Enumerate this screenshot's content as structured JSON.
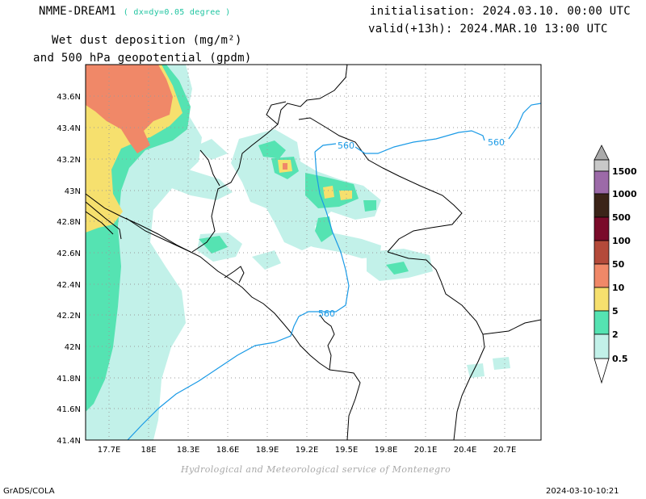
{
  "header": {
    "model": "NMME-DREAM1",
    "resolution": "( dx=dy=0.05 degree )",
    "title_line1": "Wet dust deposition (mg/m²)",
    "title_line2": "and 500 hPa geopotential (gpdm)",
    "init": "initialisation: 2024.03.10. 00:00 UTC",
    "valid": "valid(+13h): 2024.MAR.10 13:00 UTC"
  },
  "footer": {
    "credit": "Hydrological and Meteorological service of Montenegro",
    "left": "GrADS/COLA",
    "right": "2024-03-10-10:21"
  },
  "map": {
    "lat_labels": [
      "43.6N",
      "43.4N",
      "43.2N",
      "43N",
      "42.8N",
      "42.6N",
      "42.4N",
      "42.2N",
      "42N",
      "41.8N",
      "41.6N",
      "41.4N"
    ],
    "lon_labels": [
      "17.7E",
      "18E",
      "18.3E",
      "18.6E",
      "18.9E",
      "19.2E",
      "19.5E",
      "19.8E",
      "20.1E",
      "20.4E",
      "20.7E"
    ],
    "contour_labels": [
      "560",
      "560",
      "560"
    ],
    "contour_color": "#1a9ae6"
  },
  "colorbar": {
    "labels": [
      "1500",
      "1000",
      "500",
      "100",
      "50",
      "10",
      "5",
      "2",
      "0.5"
    ],
    "colors": [
      "#9c6aa8",
      "#3b2418",
      "#7a0b2a",
      "#b44a3a",
      "#f08868",
      "#f6e06e",
      "#55e3b2",
      "#c2f1e9"
    ]
  }
}
